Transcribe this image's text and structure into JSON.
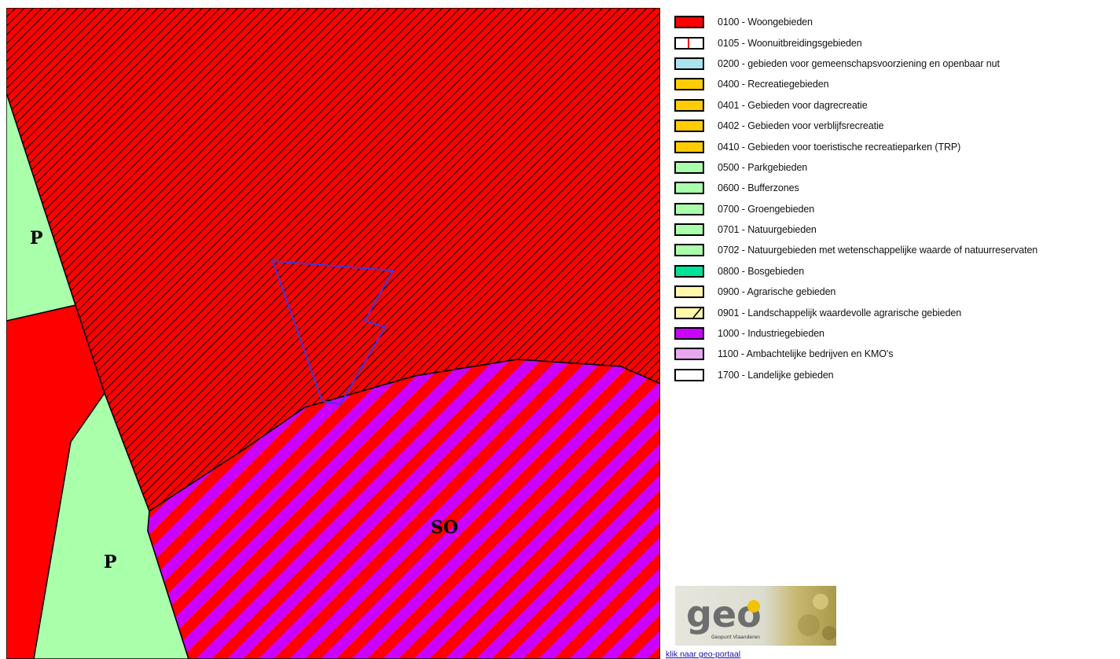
{
  "map": {
    "labels": {
      "p_top": "P",
      "p_bottom": "P",
      "so": "SO"
    },
    "colors": {
      "woongebied_red": "#ff0000",
      "park_green": "#aaffaa",
      "industry_purple": "#cc00ff",
      "hatch_line": "#000000",
      "parcel_outline": "#3a3adf"
    }
  },
  "legend": {
    "items": [
      {
        "label": "0100 - Woongebieden",
        "color": "#ff0000",
        "pattern": "solid"
      },
      {
        "label": "0105 - Woonuitbreidingsgebieden",
        "color": "#ffffff",
        "pattern": "red-bar"
      },
      {
        "label": "0200 - gebieden voor gemeenschapsvoorziening en openbaar nut",
        "color": "#a8e4f0",
        "pattern": "solid"
      },
      {
        "label": "0400 - Recreatiegebieden",
        "color": "#ffcc00",
        "pattern": "solid"
      },
      {
        "label": "0401 - Gebieden voor dagrecreatie",
        "color": "#ffcc00",
        "pattern": "solid"
      },
      {
        "label": "0402 - Gebieden voor verblijfsrecreatie",
        "color": "#ffcc00",
        "pattern": "solid"
      },
      {
        "label": "0410 - Gebieden voor toeristische recreatieparken (TRP)",
        "color": "#ffcc00",
        "pattern": "solid"
      },
      {
        "label": "0500 - Parkgebieden",
        "color": "#aaffaa",
        "pattern": "solid"
      },
      {
        "label": "0600 - Bufferzones",
        "color": "#aaffaa",
        "pattern": "solid"
      },
      {
        "label": "0700 - Groengebieden",
        "color": "#aaffaa",
        "pattern": "solid"
      },
      {
        "label": "0701 - Natuurgebieden",
        "color": "#aaffaa",
        "pattern": "solid"
      },
      {
        "label": "0702 - Natuurgebieden met wetenschappelijke waarde of natuurreservaten",
        "color": "#aaffaa",
        "pattern": "solid"
      },
      {
        "label": "0800 - Bosgebieden",
        "color": "#00e39a",
        "pattern": "solid"
      },
      {
        "label": "0900 - Agrarische gebieden",
        "color": "#fff7aa",
        "pattern": "solid"
      },
      {
        "label": "0901 - Landschappelijk waardevolle agrarische gebieden",
        "color": "#fff7aa",
        "pattern": "diagonal"
      },
      {
        "label": "1000 - Industriegebieden",
        "color": "#cc00ff",
        "pattern": "solid"
      },
      {
        "label": "1100 - Ambachtelijke bedrijven en KMO's",
        "color": "#e8a8f0",
        "pattern": "solid"
      },
      {
        "label": "1700 - Landelijke gebieden",
        "color": "#ffffff",
        "pattern": "solid"
      }
    ]
  },
  "logo": {
    "word": "geo",
    "subtitle": "Geopunt Vlaanderen"
  },
  "link": {
    "text": "klik naar geo-portaal"
  }
}
